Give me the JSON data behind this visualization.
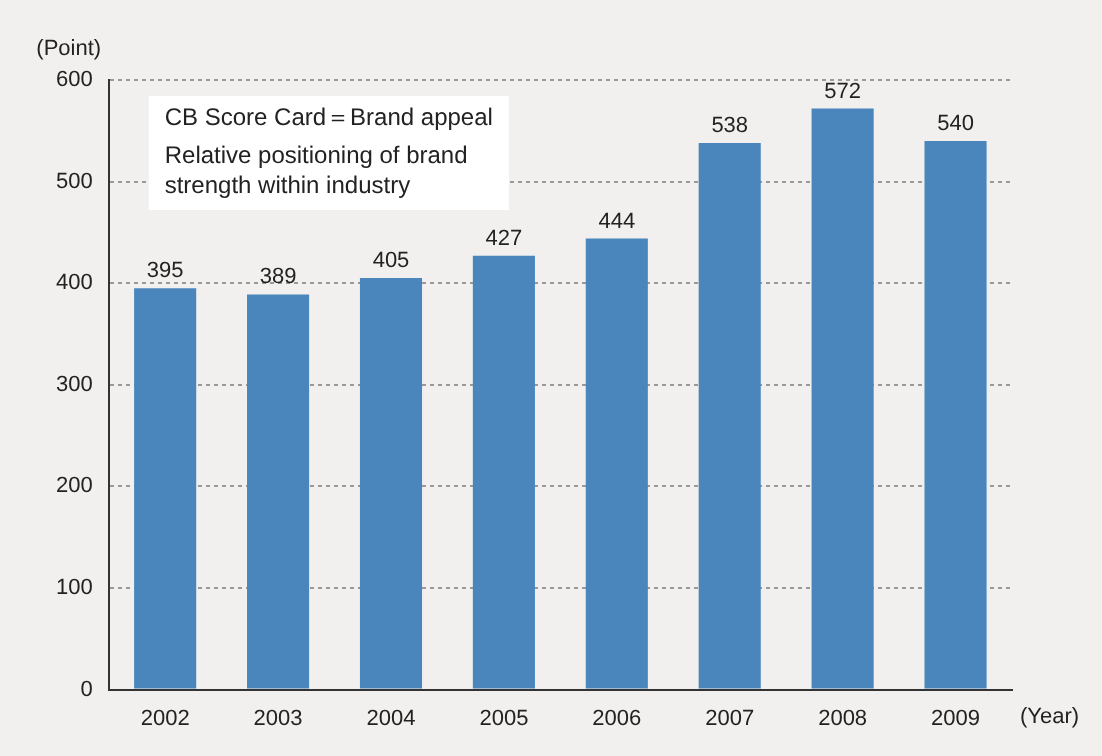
{
  "chart_data": {
    "type": "bar",
    "xlabel": "(Year)",
    "ylabel": "(Point)",
    "annotations": [
      "CB Score Card＝Brand appeal",
      "Relative positioning of brand\nstrength within industry"
    ],
    "categories": [
      "2002",
      "2003",
      "2004",
      "2005",
      "2006",
      "2007",
      "2008",
      "2009"
    ],
    "values": [
      395,
      389,
      405,
      427,
      444,
      538,
      572,
      540
    ],
    "color": "#4a86bc",
    "ylim": [
      0,
      600
    ],
    "yticks": [
      0,
      100,
      200,
      300,
      400,
      500,
      600
    ],
    "grid": "y",
    "data_labels": true
  }
}
